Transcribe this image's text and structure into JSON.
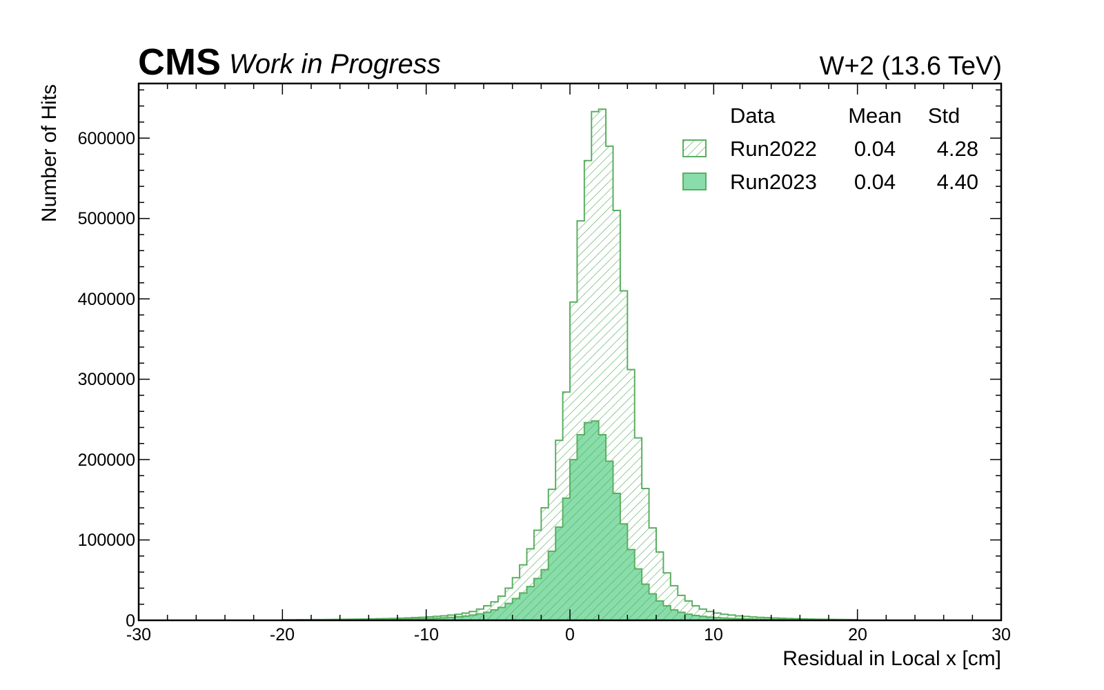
{
  "header": {
    "experiment": "CMS",
    "status": "Work in Progress",
    "right_label": "W+2 (13.6 TeV)"
  },
  "colors": {
    "outline": "#5aae61",
    "filled": "#88ddaa",
    "hatch": "#5aae61",
    "axis": "#000000"
  },
  "legend": {
    "position": "top-right",
    "headers": [
      "Data",
      "Mean",
      "Std"
    ],
    "rows": [
      {
        "name": "Run2022",
        "mean": "0.04",
        "std": "4.28",
        "style": "hatched"
      },
      {
        "name": "Run2023",
        "mean": "0.04",
        "std": "4.40",
        "style": "filled"
      }
    ]
  },
  "chart_data": {
    "type": "histogram",
    "xlabel": "Residual in Local x [cm]",
    "ylabel": "Number of Hits",
    "xlim": [
      -30,
      30
    ],
    "ylim": [
      0,
      668000
    ],
    "bin_width": 0.5,
    "x_ticks": [
      "-30",
      "-20",
      "-10",
      "0",
      "10",
      "20",
      "30"
    ],
    "y_ticks": [
      "0",
      "100000",
      "200000",
      "300000",
      "400000",
      "500000",
      "600000"
    ],
    "grid": false,
    "series": [
      {
        "name": "Run2022",
        "style": "hatched",
        "bin_edges_start": -20,
        "values": [
          800,
          800,
          900,
          900,
          1000,
          1000,
          1100,
          1200,
          1300,
          1400,
          1500,
          1600,
          1800,
          2000,
          2200,
          2400,
          2700,
          3000,
          3400,
          3800,
          4300,
          4900,
          5600,
          6500,
          7500,
          9000,
          11000,
          14000,
          18000,
          23000,
          30000,
          40000,
          53000,
          69000,
          89000,
          112000,
          140000,
          163000,
          224000,
          284000,
          396000,
          497000,
          572000,
          633000,
          636000,
          590000,
          510000,
          410000,
          312000,
          227000,
          164000,
          115000,
          85000,
          59000,
          43000,
          31000,
          24000,
          18000,
          14000,
          11000,
          9000,
          7500,
          6500,
          5500,
          4800,
          4200,
          3700,
          3300,
          2900,
          2600,
          2300,
          2000,
          1800,
          1600,
          1400,
          1300,
          1200,
          1100,
          1000,
          900
        ]
      },
      {
        "name": "Run2023",
        "style": "filled",
        "bin_edges_start": -20,
        "values": [
          300,
          300,
          350,
          350,
          400,
          400,
          450,
          500,
          550,
          600,
          650,
          700,
          800,
          900,
          1000,
          1100,
          1200,
          1400,
          1600,
          1900,
          2200,
          2600,
          3100,
          3700,
          4400,
          5300,
          6500,
          8000,
          10000,
          13000,
          16000,
          21000,
          27000,
          34000,
          42000,
          52000,
          63000,
          86000,
          116000,
          152000,
          200000,
          231000,
          246000,
          248000,
          231000,
          198000,
          158000,
          120000,
          88000,
          64000,
          45000,
          33000,
          24000,
          18000,
          13000,
          10000,
          7600,
          6000,
          4900,
          4000,
          3300,
          2800,
          2400,
          2100,
          1800,
          1600,
          1400,
          1250,
          1100,
          1000,
          900,
          800,
          700,
          650,
          600,
          550,
          500,
          450,
          400,
          350
        ]
      }
    ]
  }
}
